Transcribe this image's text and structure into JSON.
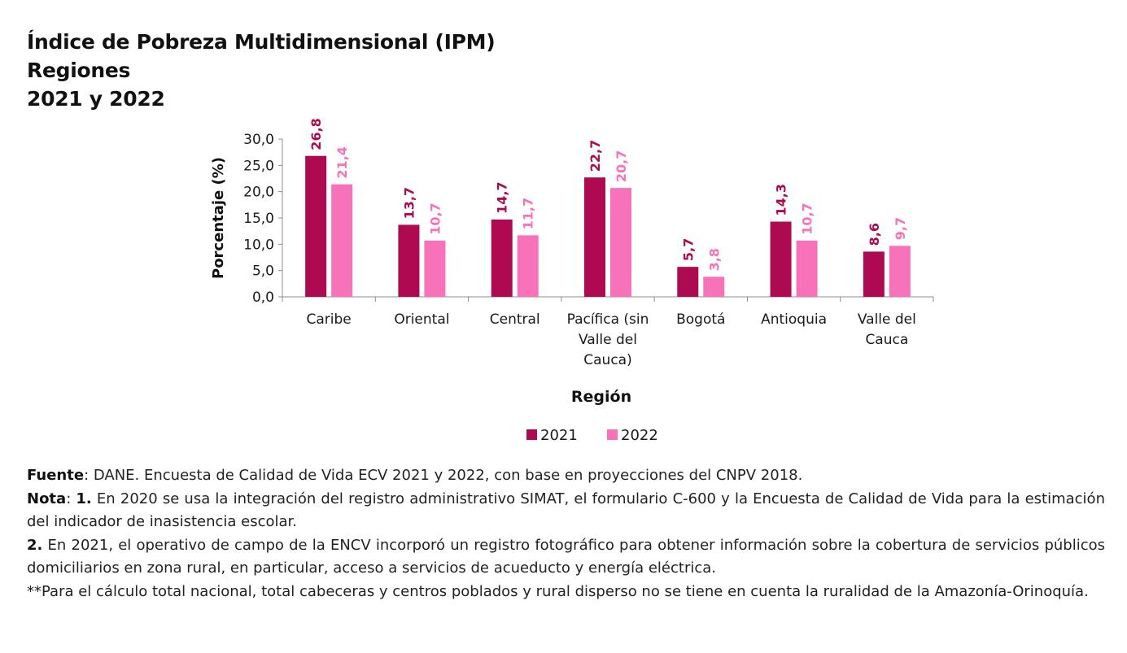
{
  "title": {
    "line1": "Índice de Pobreza Multidimensional (IPM)",
    "line2": "Regiones",
    "line3": "2021 y 2022"
  },
  "colors": {
    "series_2021": "#ad0a52",
    "series_2022": "#f772b8",
    "axis": "#8c8c8c"
  },
  "chart_data": {
    "type": "bar",
    "title": "Índice de Pobreza Multidimensional (IPM) Regiones 2021 y 2022",
    "xlabel": "Región",
    "ylabel": "Porcentaje (%)",
    "ylim": [
      0,
      30
    ],
    "yticks": [
      "0,0",
      "5,0",
      "10,0",
      "15,0",
      "20,0",
      "25,0",
      "30,0"
    ],
    "ytick_values": [
      0,
      5,
      10,
      15,
      20,
      25,
      30
    ],
    "categories": [
      [
        "Caribe"
      ],
      [
        "Oriental"
      ],
      [
        "Central"
      ],
      [
        "Pacífica (sin",
        "Valle del",
        "Cauca)"
      ],
      [
        "Bogotá"
      ],
      [
        "Antioquia"
      ],
      [
        "Valle del",
        "Cauca"
      ]
    ],
    "series": [
      {
        "name": "2021",
        "values": [
          26.8,
          13.7,
          14.7,
          22.7,
          5.7,
          14.3,
          8.6
        ],
        "labels": [
          "26,8",
          "13,7",
          "14,7",
          "22,7",
          "5,7",
          "14,3",
          "8,6"
        ]
      },
      {
        "name": "2022",
        "values": [
          21.4,
          10.7,
          11.7,
          20.7,
          3.8,
          10.7,
          9.7
        ],
        "labels": [
          "21,4",
          "10,7",
          "11,7",
          "20,7",
          "3,8",
          "10,7",
          "9,7"
        ]
      }
    ],
    "legend": "bottom-center",
    "grid": false
  },
  "footnotes": {
    "fuente_label": "Fuente",
    "fuente_text": ": DANE. Encuesta de Calidad de Vida ECV 2021 y 2022, con base en proyecciones del CNPV 2018.",
    "nota_label": "Nota",
    "nota_sep": ": ",
    "nota1_num": "1.",
    "nota1_text": " En 2020 se usa la integración del registro administrativo SIMAT, el formulario C-600 y la Encuesta de Calidad de Vida para la estimación del indicador de inasistencia escolar.",
    "nota2_num": "2.",
    "nota2_text": " En 2021, el operativo de campo de la ENCV incorporó un registro fotográfico para obtener información sobre la cobertura de servicios públicos domiciliarios en zona rural, en particular, acceso a servicios de acueducto y energía eléctrica.",
    "nota3_text": "**Para el cálculo total nacional, total cabeceras y centros poblados y rural disperso no se tiene en cuenta la ruralidad de la Amazonía-Orinoquía."
  }
}
